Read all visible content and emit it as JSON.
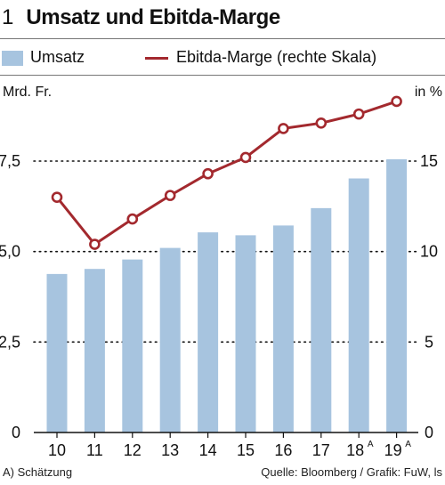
{
  "header": {
    "number": "1",
    "title": "Umsatz und Ebitda-Marge"
  },
  "legend": {
    "bar_label": "Umsatz",
    "line_label": "Ebitda-Marge (rechte Skala)"
  },
  "axis_units": {
    "left": "Mrd. Fr.",
    "right": "in %"
  },
  "footer": {
    "note": "A) Schätzung",
    "source": "Quelle: Bloomberg / Grafik: FuW, ls"
  },
  "colors": {
    "bar": "#a7c4df",
    "line": "#a3292e",
    "grid": "#111111"
  },
  "chart_data": {
    "type": "bar",
    "title": "Umsatz und Ebitda-Marge",
    "categories": [
      "10",
      "11",
      "12",
      "13",
      "14",
      "15",
      "16",
      "17",
      "18",
      "19"
    ],
    "category_superscripts": [
      "",
      "",
      "",
      "",
      "",
      "",
      "",
      "",
      "A",
      "A"
    ],
    "series": [
      {
        "name": "Umsatz",
        "type": "bar",
        "axis": "left",
        "values": [
          4.38,
          4.52,
          4.78,
          5.1,
          5.53,
          5.45,
          5.72,
          6.2,
          7.02,
          7.55
        ]
      },
      {
        "name": "Ebitda-Marge (rechte Skala)",
        "type": "line",
        "axis": "right",
        "values": [
          13.0,
          10.4,
          11.8,
          13.1,
          14.3,
          15.2,
          16.8,
          17.1,
          17.6,
          18.3
        ]
      }
    ],
    "y_left": {
      "label": "Mrd. Fr.",
      "ylim": [
        0,
        9
      ],
      "ticks": [
        0,
        2.5,
        5.0,
        7.5
      ],
      "tick_labels": [
        "0",
        "2,5",
        "5,0",
        "7,5"
      ]
    },
    "y_right": {
      "label": "in %",
      "ylim": [
        0,
        18
      ],
      "ticks": [
        0,
        5,
        10,
        15
      ],
      "tick_labels": [
        "0",
        "5",
        "10",
        "15"
      ]
    },
    "grid": "dotted horizontal",
    "legend_position": "top"
  }
}
